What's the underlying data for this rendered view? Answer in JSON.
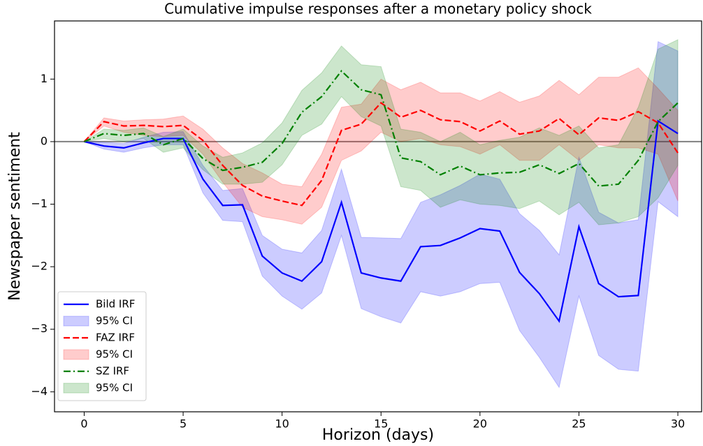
{
  "chart_data": {
    "type": "line",
    "title": "Cumulative impulse responses after a monetary policy shock",
    "x_label": "Horizon (days)",
    "y_label": "Newspaper sentiment",
    "x": [
      0,
      1,
      2,
      3,
      4,
      5,
      6,
      7,
      8,
      9,
      10,
      11,
      12,
      13,
      14,
      15,
      16,
      17,
      18,
      19,
      20,
      21,
      22,
      23,
      24,
      25,
      26,
      27,
      28,
      29,
      30
    ],
    "xlim": [
      -1.5,
      31.2
    ],
    "ylim": [
      -4.32,
      1.93
    ],
    "xticks": [
      0,
      5,
      10,
      15,
      20,
      25,
      30
    ],
    "yticks": [
      {
        "value": -4,
        "label": "−4"
      },
      {
        "value": -3,
        "label": "−3"
      },
      {
        "value": -2,
        "label": "−2"
      },
      {
        "value": -1,
        "label": "−1"
      },
      0,
      1
    ],
    "hline": 0,
    "legend": "lower left",
    "series": [
      {
        "name": "Bild IRF",
        "kind": "line",
        "color": "#0000ff",
        "dash": "solid",
        "values": [
          0,
          -0.07,
          -0.1,
          -0.02,
          0.05,
          0.05,
          -0.6,
          -1.02,
          -1.01,
          -1.83,
          -2.1,
          -2.23,
          -1.92,
          -0.97,
          -2.1,
          -2.18,
          -2.23,
          -1.68,
          -1.66,
          -1.54,
          -1.39,
          -1.43,
          -2.09,
          -2.43,
          -2.87,
          -1.36,
          -2.27,
          -2.48,
          -2.46,
          0.33,
          0.13
        ]
      },
      {
        "name": "95% CI",
        "kind": "band",
        "color": "#0000ff",
        "lower": [
          0,
          -0.12,
          -0.17,
          -0.1,
          -0.05,
          -0.05,
          -0.82,
          -1.26,
          -1.28,
          -2.15,
          -2.47,
          -2.68,
          -2.42,
          -1.5,
          -2.67,
          -2.8,
          -2.9,
          -2.4,
          -2.47,
          -2.4,
          -2.27,
          -2.25,
          -3.02,
          -3.45,
          -3.93,
          -2.47,
          -3.42,
          -3.64,
          -3.67,
          -0.96,
          -1.2
        ],
        "upper": [
          0,
          -0.01,
          -0.03,
          0.07,
          0.15,
          0.16,
          -0.38,
          -0.78,
          -0.75,
          -1.5,
          -1.72,
          -1.78,
          -1.42,
          -0.44,
          -1.53,
          -1.54,
          -1.55,
          -0.97,
          -0.85,
          -0.7,
          -0.52,
          -0.6,
          -1.15,
          -1.42,
          -1.81,
          -0.25,
          -1.13,
          -1.3,
          -1.25,
          1.6,
          1.45
        ]
      },
      {
        "name": "FAZ IRF",
        "kind": "line",
        "color": "#ff0000",
        "dash": "dashed",
        "values": [
          0,
          0.32,
          0.25,
          0.26,
          0.24,
          0.26,
          0.02,
          -0.38,
          -0.7,
          -0.87,
          -0.95,
          -1.02,
          -0.62,
          0.18,
          0.28,
          0.62,
          0.39,
          0.5,
          0.35,
          0.32,
          0.17,
          0.33,
          0.12,
          0.17,
          0.37,
          0.11,
          0.38,
          0.34,
          0.48,
          0.3,
          -0.18
        ]
      },
      {
        "name": "95% CI",
        "kind": "band",
        "color": "#ff0000",
        "lower": [
          0,
          0.25,
          0.15,
          0.1,
          0.08,
          0.1,
          -0.2,
          -0.65,
          -1.05,
          -1.2,
          -1.25,
          -1.32,
          -1.05,
          -0.3,
          -0.15,
          0.15,
          0,
          0.05,
          -0.05,
          -0.08,
          -0.2,
          -0.05,
          -0.3,
          -0.3,
          -0.05,
          -0.3,
          -0.05,
          -0.1,
          -0.1,
          -0.2,
          -0.95
        ],
        "upper": [
          0,
          0.38,
          0.33,
          0.35,
          0.36,
          0.41,
          0.2,
          -0.1,
          -0.35,
          -0.5,
          -0.68,
          -0.72,
          -0.2,
          0.55,
          0.6,
          1,
          0.83,
          0.95,
          0.78,
          0.78,
          0.65,
          0.8,
          0.63,
          0.73,
          0.98,
          0.75,
          1.03,
          1.03,
          1.18,
          0.85,
          0.5
        ]
      },
      {
        "name": "SZ IRF",
        "kind": "line",
        "color": "#008000",
        "dash": "dashdot",
        "values": [
          0,
          0.13,
          0.1,
          0.13,
          -0.05,
          0.05,
          -0.27,
          -0.46,
          -0.41,
          -0.33,
          -0.03,
          0.47,
          0.72,
          1.13,
          0.83,
          0.75,
          -0.26,
          -0.32,
          -0.53,
          -0.39,
          -0.53,
          -0.5,
          -0.49,
          -0.37,
          -0.51,
          -0.35,
          -0.71,
          -0.68,
          -0.3,
          0.32,
          0.62
        ]
      },
      {
        "name": "95% CI",
        "kind": "band",
        "color": "#008000",
        "lower": [
          0,
          0.05,
          0,
          0.05,
          -0.17,
          -0.1,
          -0.45,
          -0.68,
          -0.68,
          -0.65,
          -0.37,
          0.1,
          0.28,
          0.72,
          0.4,
          0.25,
          -0.72,
          -0.78,
          -1.05,
          -0.93,
          -1,
          -1.02,
          -1.07,
          -0.95,
          -1.17,
          -0.97,
          -1.33,
          -1.3,
          -1.2,
          -0.9,
          -0.38
        ],
        "upper": [
          0,
          0.2,
          0.18,
          0.22,
          0.08,
          0.2,
          -0.07,
          -0.25,
          -0.18,
          -0.02,
          0.3,
          0.82,
          1.1,
          1.53,
          1.23,
          1.2,
          0.2,
          0.15,
          0,
          0.15,
          -0.05,
          0.02,
          0.07,
          0.22,
          0.1,
          0.25,
          -0.1,
          -0.05,
          0.55,
          1.48,
          1.63
        ]
      }
    ]
  }
}
